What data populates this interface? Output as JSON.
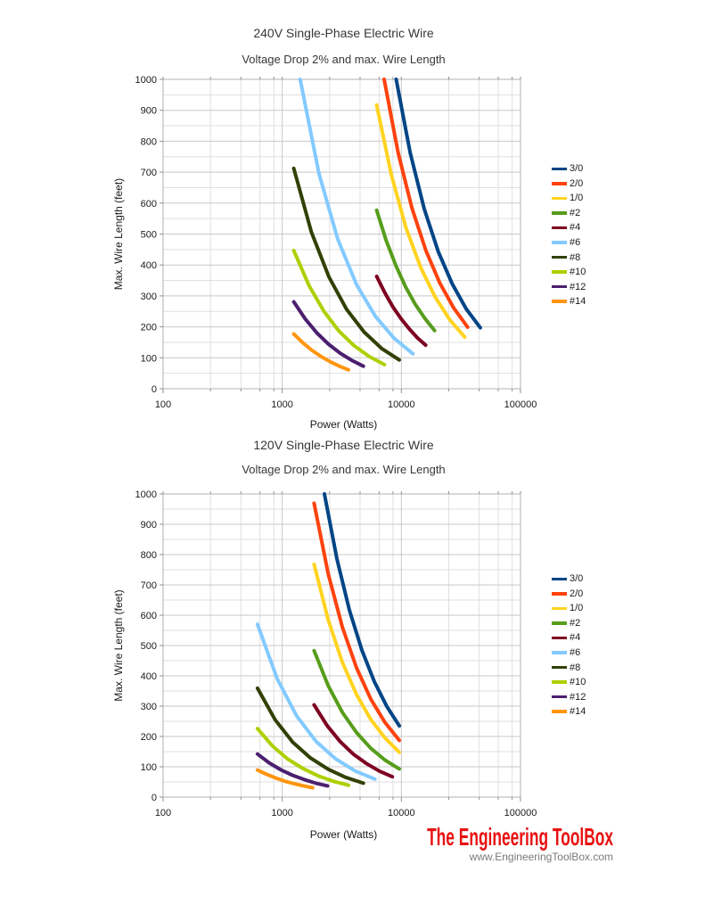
{
  "branding": {
    "name": "The Engineering ToolBox",
    "url": "www.EngineeringToolBox.com",
    "color": "#e81212"
  },
  "chart_data": [
    {
      "id": "chart-240v",
      "type": "line",
      "title": "240V Single-Phase Electric Wire",
      "subtitle": "Voltage Drop 2% and max. Wire Length",
      "xlabel": "Power (Watts)",
      "ylabel": "Max. Wire Length (feet)",
      "x_scale": "log",
      "xlim": [
        100,
        100000
      ],
      "ylim": [
        0,
        1000
      ],
      "x_ticks": [
        100,
        1000,
        10000,
        100000
      ],
      "y_tick_step": 100,
      "grid": true,
      "legend_position": "right",
      "series": [
        {
          "name": "3/0",
          "color": "#004586",
          "points": [
            [
              9041,
              1000
            ],
            [
              11853,
              763
            ],
            [
              15539,
              582
            ],
            [
              20372,
              444
            ],
            [
              26707,
              339
            ],
            [
              35013,
              258
            ],
            [
              46000,
              197
            ]
          ]
        },
        {
          "name": "2/0",
          "color": "#FF420E",
          "points": [
            [
              7170,
              1000
            ],
            [
              9379,
              764
            ],
            [
              12268,
              584
            ],
            [
              16047,
              447
            ],
            [
              20990,
              342
            ],
            [
              27456,
              261
            ],
            [
              36000,
              199
            ]
          ]
        },
        {
          "name": "1/0",
          "color": "#FFD320",
          "points": [
            [
              6200,
              917
            ],
            [
              8234,
              691
            ],
            [
              10935,
              520
            ],
            [
              14522,
              392
            ],
            [
              19286,
              295
            ],
            [
              25613,
              222
            ],
            [
              34000,
              167
            ]
          ]
        },
        {
          "name": "#2",
          "color": "#579D1C",
          "points": [
            [
              6200,
              577
            ],
            [
              7472,
              478
            ],
            [
              9006,
              397
            ],
            [
              10854,
              329
            ],
            [
              13082,
              273
            ],
            [
              15766,
              227
            ],
            [
              19000,
              188
            ]
          ]
        },
        {
          "name": "#4",
          "color": "#7E0021",
          "points": [
            [
              6200,
              363
            ],
            [
              7262,
              310
            ],
            [
              8506,
              264
            ],
            [
              9963,
              226
            ],
            [
              11670,
              193
            ],
            [
              13669,
              164
            ],
            [
              16000,
              141
            ]
          ]
        },
        {
          "name": "#6",
          "color": "#83CAFF",
          "points": [
            [
              1414,
              1000
            ],
            [
              2034,
              695
            ],
            [
              2925,
              483
            ],
            [
              4206,
              336
            ],
            [
              6049,
              234
            ],
            [
              8699,
              163
            ],
            [
              12500,
              113
            ]
          ]
        },
        {
          "name": "#8",
          "color": "#314004",
          "points": [
            [
              1250,
              712
            ],
            [
              1756,
              506
            ],
            [
              2467,
              361
            ],
            [
              3466,
              257
            ],
            [
              4870,
              183
            ],
            [
              6842,
              130
            ],
            [
              9600,
              93
            ]
          ]
        },
        {
          "name": "#10",
          "color": "#AECF00",
          "points": [
            [
              1250,
              447
            ],
            [
              1674,
              334
            ],
            [
              2241,
              250
            ],
            [
              3000,
              186
            ],
            [
              4017,
              139
            ],
            [
              5378,
              104
            ],
            [
              7200,
              78
            ]
          ]
        },
        {
          "name": "#12",
          "color": "#4B1F6F",
          "points": [
            [
              1250,
              281
            ],
            [
              1564,
              225
            ],
            [
              1957,
              180
            ],
            [
              2448,
              144
            ],
            [
              3062,
              115
            ],
            [
              3831,
              92
            ],
            [
              4800,
              73
            ]
          ]
        },
        {
          "name": "#14",
          "color": "#FF950E",
          "points": [
            [
              1250,
              177
            ],
            [
              1491,
              148
            ],
            [
              1779,
              124
            ],
            [
              2122,
              104
            ],
            [
              2531,
              87
            ],
            [
              3019,
              73
            ],
            [
              3600,
              61
            ]
          ]
        }
      ]
    },
    {
      "id": "chart-120v",
      "type": "line",
      "title": "120V Single-Phase Electric Wire",
      "subtitle": "Voltage Drop 2% and max. Wire Length",
      "xlabel": "Power (Watts)",
      "ylabel": "Max. Wire Length (feet)",
      "x_scale": "log",
      "xlim": [
        100,
        100000
      ],
      "ylim": [
        0,
        1000
      ],
      "x_ticks": [
        100,
        1000,
        10000,
        100000
      ],
      "y_tick_step": 100,
      "grid": true,
      "legend_position": "right",
      "series": [
        {
          "name": "3/0",
          "color": "#004586",
          "points": [
            [
              2260,
              1000
            ],
            [
              2877,
              786
            ],
            [
              3662,
              617
            ],
            [
              4661,
              485
            ],
            [
              5933,
              381
            ],
            [
              7552,
              299
            ],
            [
              9600,
              235
            ]
          ]
        },
        {
          "name": "2/0",
          "color": "#FF420E",
          "points": [
            [
              1850,
              969
            ],
            [
              2434,
              736
            ],
            [
              3203,
              560
            ],
            [
              4214,
              425
            ],
            [
              5545,
              323
            ],
            [
              7296,
              246
            ],
            [
              9600,
              187
            ]
          ]
        },
        {
          "name": "1/0",
          "color": "#FFD320",
          "points": [
            [
              1850,
              768
            ],
            [
              2434,
              584
            ],
            [
              3203,
              444
            ],
            [
              4214,
              337
            ],
            [
              5545,
              256
            ],
            [
              7296,
              195
            ],
            [
              9600,
              148
            ]
          ]
        },
        {
          "name": "#2",
          "color": "#579D1C",
          "points": [
            [
              1850,
              483
            ],
            [
              2434,
              367
            ],
            [
              3203,
              279
            ],
            [
              4214,
              212
            ],
            [
              5545,
              161
            ],
            [
              7296,
              122
            ],
            [
              9600,
              93
            ]
          ]
        },
        {
          "name": "#4",
          "color": "#7E0021",
          "points": [
            [
              1850,
              304
            ],
            [
              2381,
              236
            ],
            [
              3065,
              183
            ],
            [
              3945,
              142
            ],
            [
              5078,
              111
            ],
            [
              6536,
              86
            ],
            [
              8400,
              67
            ]
          ]
        },
        {
          "name": "#6",
          "color": "#83CAFF",
          "points": [
            [
              620,
              570
            ],
            [
              905,
              391
            ],
            [
              1321,
              268
            ],
            [
              1928,
              183
            ],
            [
              2814,
              126
            ],
            [
              4108,
              86
            ],
            [
              6000,
              59
            ]
          ]
        },
        {
          "name": "#8",
          "color": "#314004",
          "points": [
            [
              620,
              359
            ],
            [
              872,
              255
            ],
            [
              1227,
              181
            ],
            [
              1725,
              129
            ],
            [
              2427,
              92
            ],
            [
              3413,
              65
            ],
            [
              4800,
              46
            ]
          ]
        },
        {
          "name": "#10",
          "color": "#AECF00",
          "points": [
            [
              620,
              226
            ],
            [
              831,
              168
            ],
            [
              1115,
              125
            ],
            [
              1495,
              94
            ],
            [
              2004,
              70
            ],
            [
              2688,
              52
            ],
            [
              3600,
              39
            ]
          ]
        },
        {
          "name": "#12",
          "color": "#4B1F6F",
          "points": [
            [
              620,
              142
            ],
            [
              777,
              113
            ],
            [
              973,
              90
            ],
            [
              1219,
              72
            ],
            [
              1527,
              58
            ],
            [
              1913,
              46
            ],
            [
              2400,
              37
            ]
          ]
        },
        {
          "name": "#14",
          "color": "#FF950E",
          "points": [
            [
              620,
              89
            ],
            [
              740,
              75
            ],
            [
              884,
              63
            ],
            [
              1056,
              52
            ],
            [
              1262,
              44
            ],
            [
              1507,
              37
            ],
            [
              1800,
              31
            ]
          ]
        }
      ]
    }
  ]
}
